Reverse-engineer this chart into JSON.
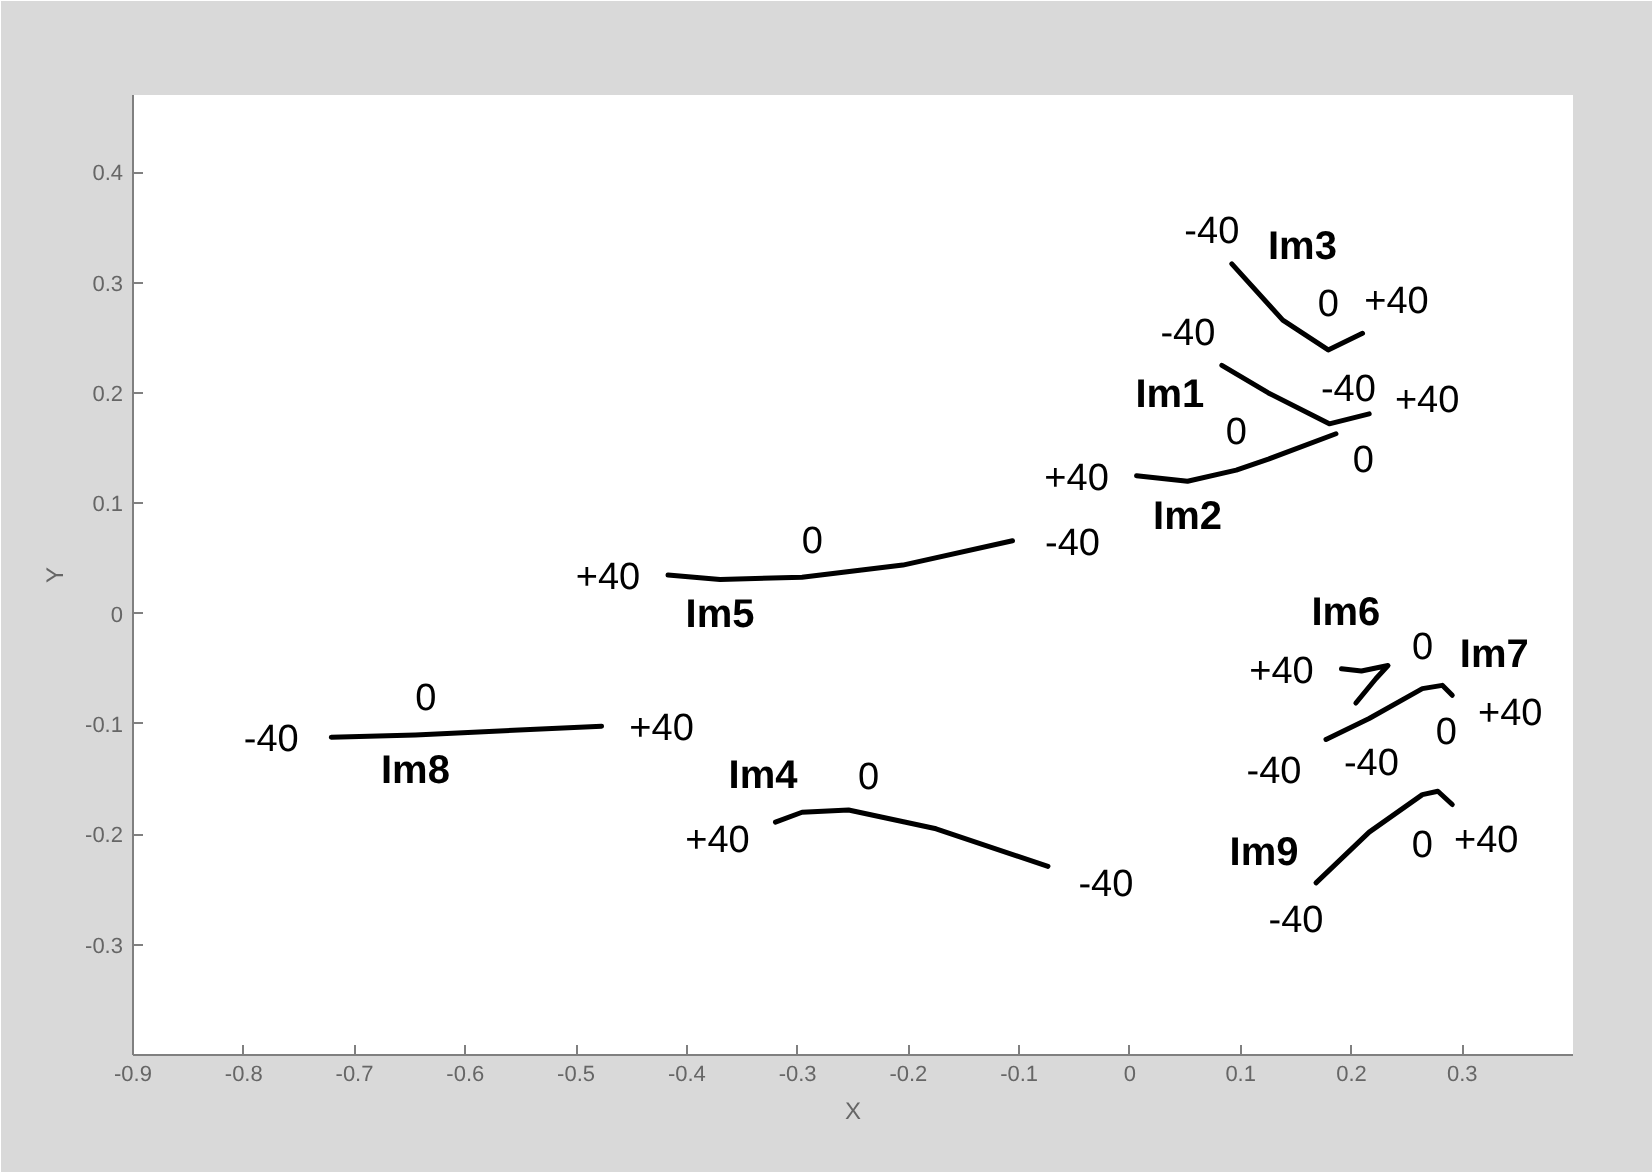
{
  "chart_data": {
    "type": "line",
    "xlabel": "X",
    "ylabel": "Y",
    "xlim": [
      -0.9,
      0.4
    ],
    "ylim": [
      -0.4,
      0.47
    ],
    "xticks": [
      -0.9,
      -0.8,
      -0.7,
      -0.6,
      -0.5,
      -0.4,
      -0.3,
      -0.2,
      -0.1,
      0,
      0.1,
      0.2,
      0.3
    ],
    "yticks": [
      -0.3,
      -0.2,
      -0.1,
      0,
      0.1,
      0.2,
      0.3,
      0.4
    ],
    "grid": false,
    "legend": false,
    "series": [
      {
        "name": "Im1",
        "color": "#000000",
        "x": [
          0.083,
          0.125,
          0.18,
          0.216
        ],
        "values": [
          0.225,
          0.2,
          0.172,
          0.181
        ]
      },
      {
        "name": "Im2",
        "color": "#000000",
        "x": [
          0.006,
          0.052,
          0.096,
          0.125,
          0.186
        ],
        "values": [
          0.125,
          0.12,
          0.13,
          0.14,
          0.163
        ]
      },
      {
        "name": "Im3",
        "color": "#000000",
        "x": [
          0.092,
          0.138,
          0.179,
          0.21
        ],
        "values": [
          0.317,
          0.266,
          0.239,
          0.254
        ]
      },
      {
        "name": "Im4",
        "color": "#000000",
        "x": [
          -0.32,
          -0.296,
          -0.254,
          -0.175,
          -0.074
        ],
        "values": [
          -0.189,
          -0.18,
          -0.178,
          -0.195,
          -0.229
        ]
      },
      {
        "name": "Im5",
        "color": "#000000",
        "x": [
          -0.417,
          -0.37,
          -0.296,
          -0.205,
          -0.106
        ],
        "values": [
          0.035,
          0.031,
          0.033,
          0.044,
          0.066
        ]
      },
      {
        "name": "Im6",
        "color": "#000000",
        "x": [
          0.204,
          0.222,
          0.233,
          0.209,
          0.191
        ],
        "values": [
          -0.081,
          -0.059,
          -0.047,
          -0.052,
          -0.05
        ]
      },
      {
        "name": "Im7",
        "color": "#000000",
        "x": [
          0.177,
          0.216,
          0.264,
          0.282,
          0.291
        ],
        "values": [
          -0.114,
          -0.095,
          -0.068,
          -0.065,
          -0.074
        ]
      },
      {
        "name": "Im8",
        "color": "#000000",
        "x": [
          -0.721,
          -0.645,
          -0.477
        ],
        "values": [
          -0.112,
          -0.11,
          -0.102
        ]
      },
      {
        "name": "Im9",
        "color": "#000000",
        "x": [
          0.168,
          0.216,
          0.264,
          0.278,
          0.291
        ],
        "values": [
          -0.244,
          -0.198,
          -0.164,
          -0.161,
          -0.173
        ]
      }
    ],
    "annotations": [
      {
        "text": "-40",
        "x": 0.083,
        "y": 0.225
      },
      {
        "text": "0",
        "x": 0.18,
        "y": 0.172
      },
      {
        "text": "+40",
        "x": 0.216,
        "y": 0.181
      },
      {
        "text": "+40",
        "x": 0.006,
        "y": 0.125
      },
      {
        "text": "0",
        "x": 0.096,
        "y": 0.13
      },
      {
        "text": "-40",
        "x": 0.186,
        "y": 0.163
      },
      {
        "text": "-40",
        "x": 0.092,
        "y": 0.317
      },
      {
        "text": "0",
        "x": 0.179,
        "y": 0.239
      },
      {
        "text": "+40",
        "x": 0.21,
        "y": 0.254
      },
      {
        "text": "+40",
        "x": -0.32,
        "y": -0.189
      },
      {
        "text": "0",
        "x": -0.254,
        "y": -0.178
      },
      {
        "text": "-40",
        "x": -0.074,
        "y": -0.229
      },
      {
        "text": "+40",
        "x": -0.417,
        "y": 0.035
      },
      {
        "text": "0",
        "x": -0.296,
        "y": 0.033
      },
      {
        "text": "-40",
        "x": -0.106,
        "y": 0.066
      },
      {
        "text": "+40",
        "x": 0.191,
        "y": -0.05
      },
      {
        "text": "0",
        "x": 0.233,
        "y": -0.047
      },
      {
        "text": "-40",
        "x": 0.204,
        "y": -0.081
      },
      {
        "text": "-40",
        "x": 0.177,
        "y": -0.114
      },
      {
        "text": "0",
        "x": 0.264,
        "y": -0.068
      },
      {
        "text": "+40",
        "x": 0.291,
        "y": -0.074
      },
      {
        "text": "-40",
        "x": -0.721,
        "y": -0.112
      },
      {
        "text": "0",
        "x": -0.645,
        "y": -0.11
      },
      {
        "text": "+40",
        "x": -0.477,
        "y": -0.102
      },
      {
        "text": "-40",
        "x": 0.168,
        "y": -0.244
      },
      {
        "text": "0",
        "x": 0.264,
        "y": -0.164
      },
      {
        "text": "+40",
        "x": 0.291,
        "y": -0.173
      }
    ]
  }
}
